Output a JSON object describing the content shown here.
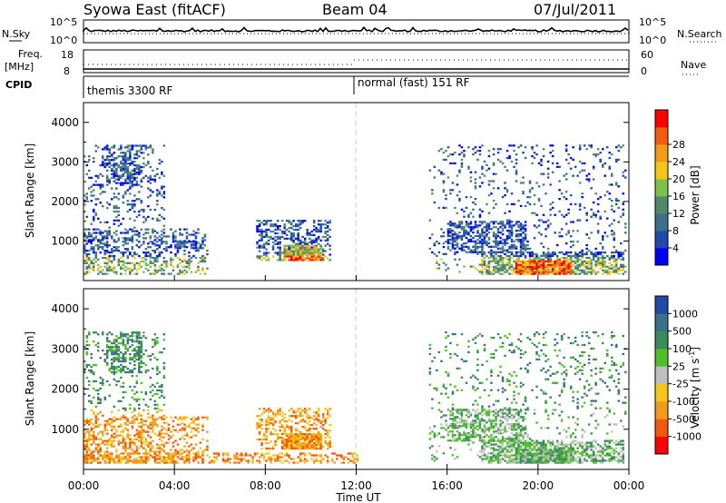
{
  "header": {
    "left": "Syowa East (fitACF)",
    "center": "Beam 04",
    "right": "07/Jul/2011"
  },
  "strips": {
    "nsky_label": "N.Sky",
    "nsky_ticks": [
      "10^5",
      "10^0"
    ],
    "nsearch_label": "N.Search",
    "freq_label": "Freq.",
    "freq_unit": "[MHz]",
    "freq_ticks": [
      "18",
      "8"
    ],
    "nave_label": "Nave",
    "nave_ticks": [
      "60",
      "0"
    ],
    "cpid_label": "CPID",
    "cpid_segments": [
      "themis 3300 RF",
      "normal (fast) 151 RF"
    ]
  },
  "colors": {
    "power": [
      "#0000ff",
      "#1f4aa8",
      "#3b6f8a",
      "#4f8a6a",
      "#7fc04c",
      "#f5c518",
      "#f29a1a",
      "#f25c0c",
      "#ff0000"
    ],
    "velocity": [
      "#ff0000",
      "#f05a0c",
      "#f29a1a",
      "#f5c518",
      "#bfbfbf",
      "#4fc02a",
      "#3b8a5a",
      "#3b6f8a",
      "#1f4aa8"
    ]
  },
  "chart_data": [
    {
      "type": "heatmap",
      "quantity": "Power",
      "xlabel": "Time UT",
      "ylabel": "Slant Range [km]",
      "y_ticks": [
        "1000",
        "2000",
        "3000",
        "4000"
      ],
      "ylim": [
        0,
        4500
      ],
      "x_ticks": [
        "00:00",
        "04:00",
        "08:00",
        "12:00",
        "16:00",
        "20:00",
        "00:00"
      ],
      "x_range_hours": [
        0,
        24
      ],
      "colorbar_label": "Power [dB]",
      "colorbar_ticks": [
        "4",
        "8",
        "12",
        "16",
        "20",
        "24",
        "28"
      ],
      "scatter_regions": [
        {
          "t": [
            0.0,
            3.6
          ],
          "r": [
            150,
            3400
          ],
          "density": 0.16
        },
        {
          "t": [
            1.0,
            2.6
          ],
          "r": [
            2400,
            3400
          ],
          "density": 0.4
        },
        {
          "t": [
            0.0,
            5.4
          ],
          "r": [
            150,
            1300
          ],
          "density": 0.28
        },
        {
          "t": [
            4.0,
            5.2
          ],
          "r": [
            800,
            1000
          ],
          "density": 0.55
        },
        {
          "t": [
            7.6,
            10.8
          ],
          "r": [
            500,
            1500
          ],
          "density": 0.38
        },
        {
          "t": [
            8.8,
            10.4
          ],
          "r": [
            500,
            900
          ],
          "density": 0.85
        },
        {
          "t": [
            15.2,
            23.9
          ],
          "r": [
            200,
            3400
          ],
          "density": 0.1
        },
        {
          "t": [
            16.0,
            19.5
          ],
          "r": [
            700,
            1500
          ],
          "density": 0.5
        },
        {
          "t": [
            17.5,
            23.8
          ],
          "r": [
            150,
            700
          ],
          "density": 0.55
        },
        {
          "t": [
            19.0,
            21.5
          ],
          "r": [
            150,
            500
          ],
          "density": 0.9
        }
      ]
    },
    {
      "type": "heatmap",
      "quantity": "Velocity",
      "xlabel": "Time UT",
      "ylabel": "Slant Range [km]",
      "y_ticks": [
        "1000",
        "2000",
        "3000",
        "4000"
      ],
      "ylim": [
        0,
        4500
      ],
      "x_ticks": [
        "00:00",
        "04:00",
        "08:00",
        "12:00",
        "16:00",
        "20:00",
        "00:00"
      ],
      "x_range_hours": [
        0,
        24
      ],
      "colorbar_label": "Velocity [m s",
      "colorbar_label_sup": "-1",
      "colorbar_label_end": "]",
      "colorbar_ticks": [
        "-1000",
        "-500",
        "-100",
        "-25",
        "25",
        "100",
        "500",
        "1000"
      ],
      "scatter_regions": [
        {
          "t": [
            0.0,
            3.6
          ],
          "r": [
            150,
            3400
          ],
          "density": 0.16
        },
        {
          "t": [
            1.0,
            2.6
          ],
          "r": [
            2400,
            3400
          ],
          "density": 0.4
        },
        {
          "t": [
            0.0,
            5.4
          ],
          "r": [
            150,
            1300
          ],
          "density": 0.3
        },
        {
          "t": [
            0.0,
            12.0
          ],
          "r": [
            150,
            400
          ],
          "density": 0.45
        },
        {
          "t": [
            7.6,
            10.8
          ],
          "r": [
            500,
            1500
          ],
          "density": 0.38
        },
        {
          "t": [
            8.8,
            10.4
          ],
          "r": [
            500,
            900
          ],
          "density": 0.85
        },
        {
          "t": [
            15.2,
            23.9
          ],
          "r": [
            200,
            3400
          ],
          "density": 0.1
        },
        {
          "t": [
            16.0,
            19.5
          ],
          "r": [
            700,
            1500
          ],
          "density": 0.5
        },
        {
          "t": [
            17.5,
            23.8
          ],
          "r": [
            150,
            700
          ],
          "density": 0.55
        },
        {
          "t": [
            19.0,
            21.5
          ],
          "r": [
            150,
            500
          ],
          "density": 0.9
        }
      ]
    }
  ]
}
